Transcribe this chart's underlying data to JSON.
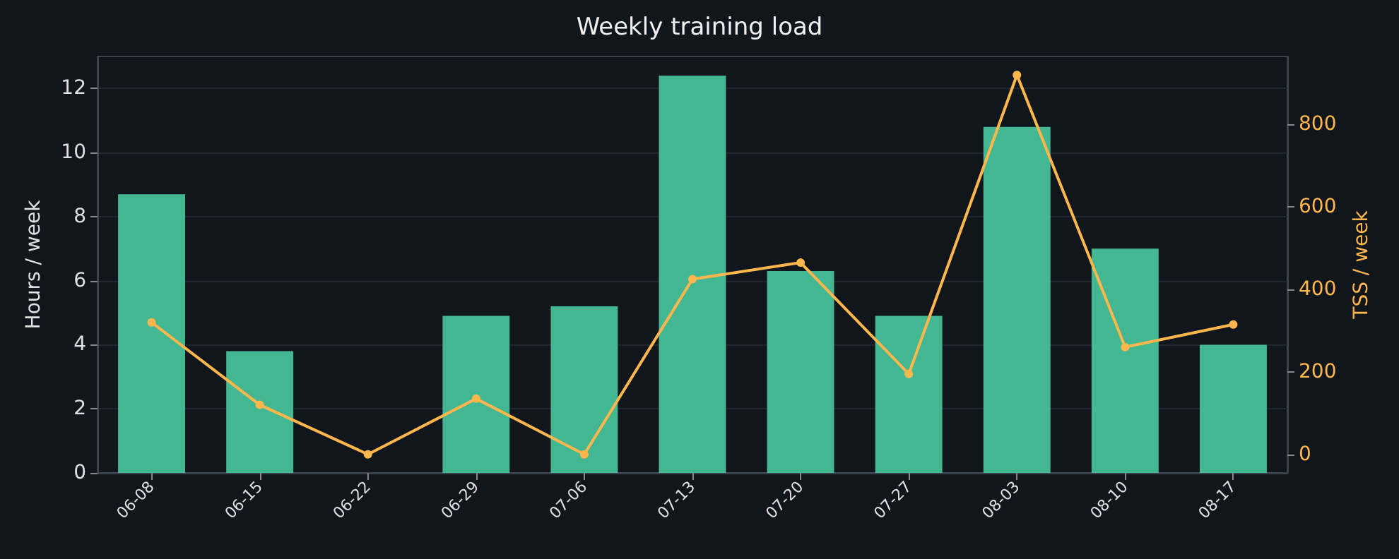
{
  "chart_data": {
    "type": "bar",
    "title": "Weekly training load",
    "ylabel": "Hours / week",
    "y2label": "TSS / week",
    "categories": [
      "06-08",
      "06-15",
      "06-22",
      "06-29",
      "07-06",
      "07-13",
      "07-20",
      "07-27",
      "08-03",
      "08-10",
      "08-17"
    ],
    "series": [
      {
        "color": "#43b692",
        "values": [
          8.7,
          3.8,
          0,
          4.9,
          5.2,
          12.4,
          6.3,
          4.9,
          10.8,
          7.0,
          4.0
        ]
      },
      {
        "type": "line",
        "axis": "y2",
        "color": "#ffb74d",
        "marker": "circle",
        "values": [
          320,
          120,
          0,
          135,
          0,
          425,
          465,
          195,
          920,
          260,
          315
        ]
      }
    ],
    "ylim": [
      0,
      13
    ],
    "yticks": [
      0,
      2,
      4,
      6,
      8,
      10,
      12
    ],
    "y2lim": [
      -45,
      965
    ],
    "y2ticks": [
      0,
      200,
      400,
      600,
      800
    ],
    "grid": "y"
  }
}
